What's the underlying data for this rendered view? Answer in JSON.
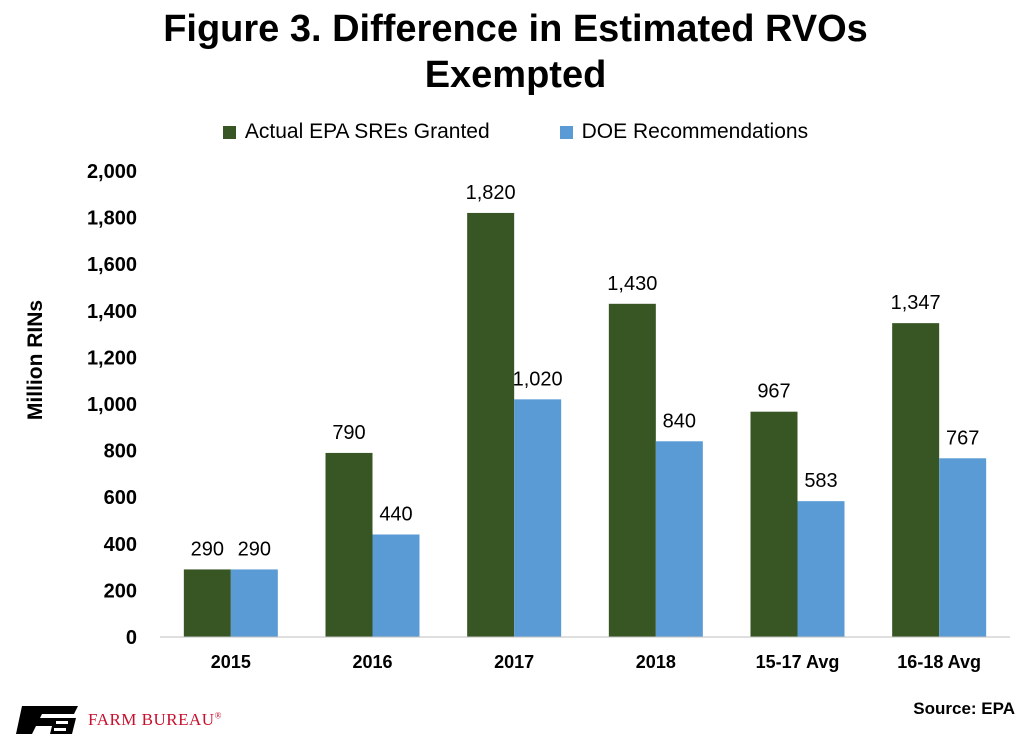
{
  "chart_data": {
    "type": "bar",
    "title": "Figure 3. Difference in Estimated RVOs Exempted",
    "title_lines": [
      "Figure 3. Difference in Estimated RVOs",
      "Exempted"
    ],
    "xlabel": "",
    "ylabel": "Million RINs",
    "categories": [
      "2015",
      "2016",
      "2017",
      "2018",
      "15-17 Avg",
      "16-18 Avg"
    ],
    "series": [
      {
        "name": "Actual EPA SREs Granted",
        "color": "#375623",
        "values": [
          290,
          790,
          1820,
          1430,
          967,
          1347
        ],
        "labels": [
          "290",
          "790",
          "1,820",
          "1,430",
          "967",
          "1,347"
        ]
      },
      {
        "name": "DOE Recommendations",
        "color": "#5b9bd5",
        "values": [
          290,
          440,
          1020,
          840,
          583,
          767
        ],
        "labels": [
          "290",
          "440",
          "1,020",
          "840",
          "583",
          "767"
        ]
      }
    ],
    "ylim": [
      0,
      2000
    ],
    "yticks": [
      0,
      200,
      400,
      600,
      800,
      1000,
      1200,
      1400,
      1600,
      1800,
      2000
    ],
    "ytick_labels": [
      "0",
      "200",
      "400",
      "600",
      "800",
      "1,000",
      "1,200",
      "1,400",
      "1,600",
      "1,800",
      "2,000"
    ],
    "grid": false,
    "legend_position": "top"
  },
  "source": "Source: EPA",
  "logo": {
    "text": "FARM BUREAU",
    "mark": "®",
    "color": "#c8102e"
  }
}
